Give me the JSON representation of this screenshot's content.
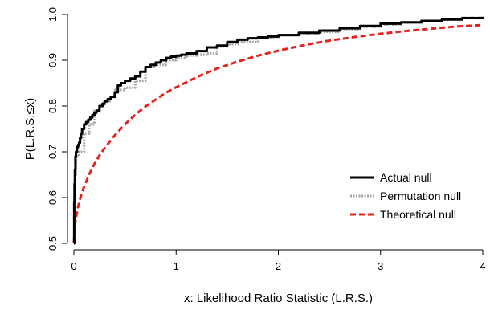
{
  "chart_data": {
    "type": "line",
    "title": "",
    "xlabel": "x: Likelihood Ratio Statistic (L.R.S.)",
    "ylabel": "P(L.R.S.≤x)",
    "xlim": [
      0,
      4
    ],
    "ylim": [
      0.5,
      1.0
    ],
    "x_ticks": [
      0,
      1,
      2,
      3,
      4
    ],
    "y_ticks": [
      0.5,
      0.6,
      0.7,
      0.8,
      0.9,
      1.0
    ],
    "x_tick_labels": [
      "0",
      "1",
      "2",
      "3",
      "4"
    ],
    "y_tick_labels": [
      "0.5",
      "0.6",
      "0.7",
      "0.8",
      "0.9",
      "1.0"
    ],
    "grid": false,
    "legend_position": "bottom-right",
    "series": [
      {
        "name": "Actual null",
        "color": "#000000",
        "style": "solid",
        "step": true,
        "x": [
          0,
          0.003,
          0.006,
          0.01,
          0.015,
          0.02,
          0.03,
          0.04,
          0.05,
          0.06,
          0.07,
          0.08,
          0.1,
          0.12,
          0.14,
          0.16,
          0.18,
          0.2,
          0.22,
          0.25,
          0.28,
          0.3,
          0.33,
          0.36,
          0.4,
          0.43,
          0.46,
          0.5,
          0.55,
          0.6,
          0.65,
          0.7,
          0.75,
          0.8,
          0.85,
          0.9,
          0.95,
          1.0,
          1.05,
          1.1,
          1.2,
          1.3,
          1.4,
          1.5,
          1.6,
          1.7,
          1.8,
          1.9,
          2.0,
          2.2,
          2.4,
          2.6,
          2.8,
          3.0,
          3.2,
          3.4,
          3.6,
          3.8,
          4.0
        ],
        "y": [
          0.5,
          0.59,
          0.63,
          0.66,
          0.69,
          0.7,
          0.71,
          0.715,
          0.72,
          0.73,
          0.74,
          0.75,
          0.76,
          0.765,
          0.77,
          0.775,
          0.78,
          0.785,
          0.79,
          0.8,
          0.805,
          0.81,
          0.815,
          0.82,
          0.83,
          0.845,
          0.85,
          0.855,
          0.86,
          0.865,
          0.875,
          0.885,
          0.89,
          0.895,
          0.9,
          0.905,
          0.908,
          0.91,
          0.912,
          0.915,
          0.92,
          0.928,
          0.932,
          0.94,
          0.945,
          0.948,
          0.95,
          0.952,
          0.955,
          0.96,
          0.965,
          0.97,
          0.975,
          0.98,
          0.983,
          0.986,
          0.989,
          0.992,
          0.995
        ]
      },
      {
        "name": "Permutation null",
        "color": "#a6a6a6",
        "style": "dotted",
        "step": true,
        "x": [
          0,
          0.005,
          0.01,
          0.02,
          0.05,
          0.1,
          0.15,
          0.2,
          0.25,
          0.3,
          0.35,
          0.4,
          0.5,
          0.6,
          0.7,
          0.8,
          0.9,
          1.0,
          1.1,
          1.2,
          1.3,
          1.4,
          1.5,
          1.6,
          1.8,
          2.0,
          2.2,
          2.4,
          2.6,
          2.8,
          3.0,
          3.2,
          3.4,
          3.6,
          3.8,
          4.0
        ],
        "y": [
          0.5,
          0.6,
          0.65,
          0.69,
          0.7,
          0.74,
          0.76,
          0.79,
          0.8,
          0.81,
          0.82,
          0.835,
          0.84,
          0.855,
          0.885,
          0.89,
          0.9,
          0.905,
          0.91,
          0.912,
          0.915,
          0.93,
          0.935,
          0.94,
          0.95,
          0.955,
          0.958,
          0.962,
          0.968,
          0.973,
          0.978,
          0.982,
          0.986,
          0.99,
          0.993,
          0.995
        ]
      },
      {
        "name": "Theoretical null",
        "color": "#e8211c",
        "style": "dashed",
        "step": false,
        "x": [
          0,
          0.005,
          0.01,
          0.02,
          0.04,
          0.06,
          0.08,
          0.1,
          0.15,
          0.2,
          0.25,
          0.3,
          0.4,
          0.5,
          0.6,
          0.7,
          0.8,
          0.9,
          1.0,
          1.2,
          1.4,
          1.6,
          1.8,
          2.0,
          2.25,
          2.5,
          2.75,
          3.0,
          3.25,
          3.5,
          3.75,
          4.0
        ],
        "y": [
          0.5,
          0.528,
          0.54,
          0.556,
          0.579,
          0.597,
          0.612,
          0.624,
          0.651,
          0.673,
          0.692,
          0.708,
          0.736,
          0.76,
          0.781,
          0.799,
          0.814,
          0.829,
          0.841,
          0.863,
          0.882,
          0.897,
          0.91,
          0.921,
          0.933,
          0.943,
          0.951,
          0.958,
          0.964,
          0.969,
          0.974,
          0.977
        ]
      }
    ]
  }
}
